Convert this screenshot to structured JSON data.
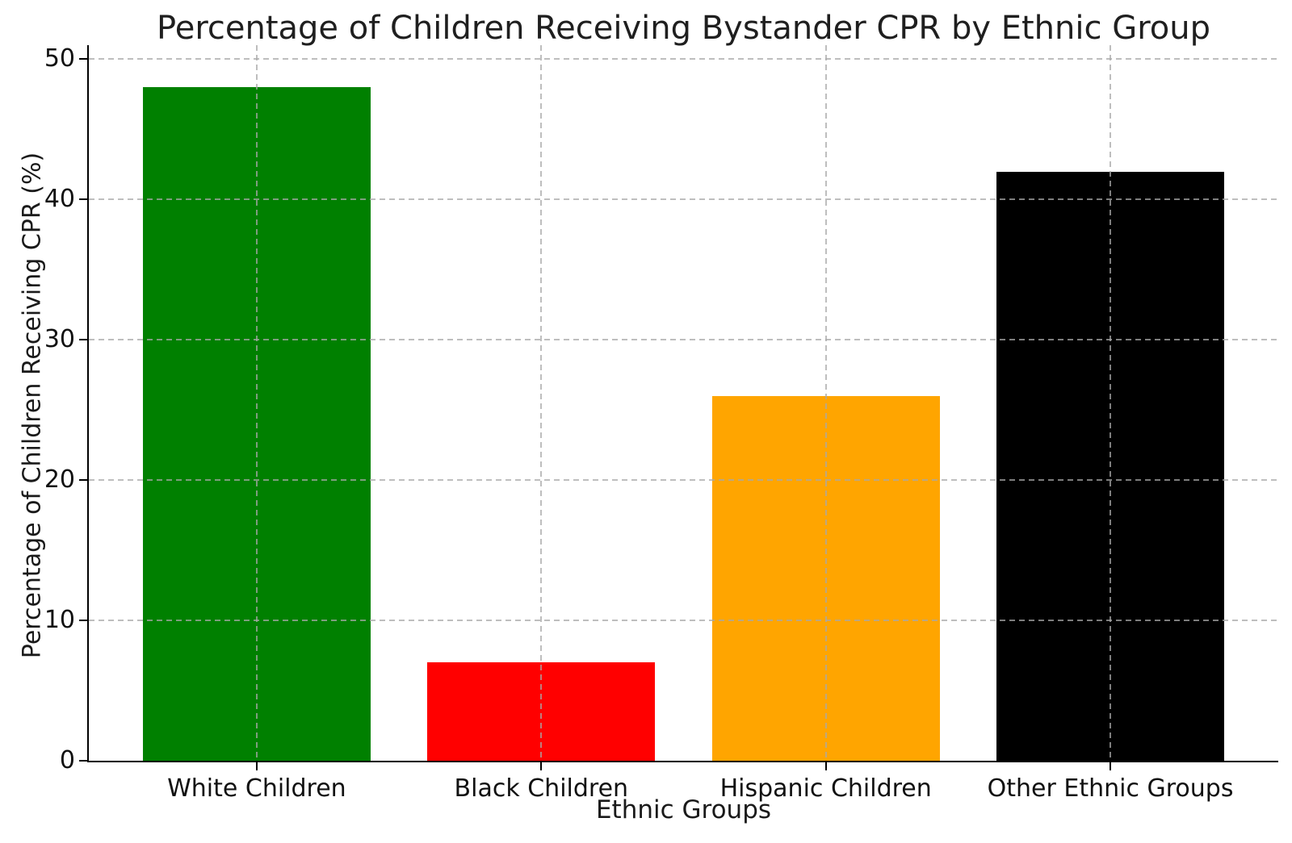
{
  "figure": {
    "background_color": "#ffffff",
    "axis_color": "#000000",
    "text_color": "#111111",
    "grid_color": "#b4b4b4"
  },
  "chart_data": {
    "type": "bar",
    "title": "Percentage of Children Receiving Bystander CPR by Ethnic Group",
    "xlabel": "Ethnic Groups",
    "ylabel": "Percentage of Children Receiving CPR (%)",
    "categories": [
      "White Children",
      "Black Children",
      "Hispanic Children",
      "Other Ethnic Groups"
    ],
    "values": [
      48,
      7,
      26,
      42
    ],
    "bar_colors": [
      "#008000",
      "#ff0000",
      "#ffa500",
      "#000000"
    ],
    "ylim": [
      0,
      51
    ],
    "yticks": [
      0,
      10,
      20,
      30,
      40,
      50
    ],
    "ytick_labels": [
      "0",
      "10",
      "20",
      "30",
      "40",
      "50"
    ],
    "bar_width_fraction": 0.8,
    "xlim_units": [
      -0.59,
      3.59
    ],
    "grid": "dashed, horizontal and vertical, drawn above bars",
    "legend": "none"
  }
}
